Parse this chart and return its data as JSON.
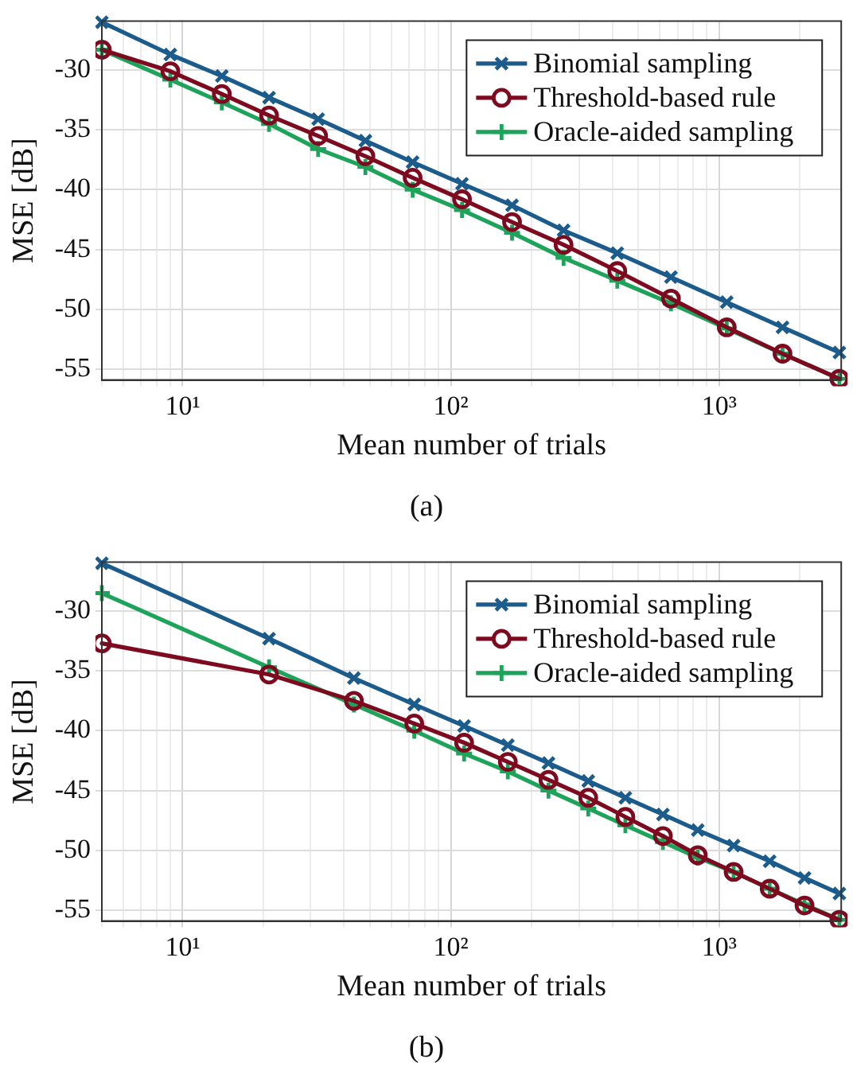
{
  "chart_data": [
    {
      "type": "line",
      "xlabel": "Mean number of trials",
      "ylabel": "MSE [dB]",
      "annotations": [
        "(a)"
      ],
      "log": "x",
      "grid": true,
      "legend": "top right",
      "line_style": "solid",
      "xlim": [
        5,
        2850
      ],
      "ylim": [
        -55.9,
        -25.9
      ],
      "xticks": [
        {
          "value": 5,
          "label": null
        },
        {
          "value": 6,
          "label": null
        },
        {
          "value": 7,
          "label": null
        },
        {
          "value": 8,
          "label": null
        },
        {
          "value": 9,
          "label": null
        },
        {
          "value": 10,
          "label": "10¹"
        },
        {
          "value": 20,
          "label": null
        },
        {
          "value": 30,
          "label": null
        },
        {
          "value": 40,
          "label": null
        },
        {
          "value": 50,
          "label": null
        },
        {
          "value": 60,
          "label": null
        },
        {
          "value": 70,
          "label": null
        },
        {
          "value": 80,
          "label": null
        },
        {
          "value": 90,
          "label": null
        },
        {
          "value": 100,
          "label": "10²"
        },
        {
          "value": 200,
          "label": null
        },
        {
          "value": 300,
          "label": null
        },
        {
          "value": 400,
          "label": null
        },
        {
          "value": 500,
          "label": null
        },
        {
          "value": 600,
          "label": null
        },
        {
          "value": 700,
          "label": null
        },
        {
          "value": 800,
          "label": null
        },
        {
          "value": 900,
          "label": null
        },
        {
          "value": 1000,
          "label": "10³"
        },
        {
          "value": 2000,
          "label": null
        }
      ],
      "yticks": [
        -55,
        -50,
        -45,
        -40,
        -35,
        -30
      ],
      "x": [
        5,
        9,
        14,
        21,
        32,
        48,
        72,
        110,
        169,
        263,
        417,
        661,
        1067,
        1722,
        2805
      ],
      "series": [
        {
          "name": "Binomial sampling",
          "color": "#1b5c8c",
          "marker": "cross",
          "values": [
            -26,
            -28.7,
            -30.5,
            -32.3,
            -34.1,
            -35.9,
            -37.7,
            -39.5,
            -41.3,
            -43.4,
            -45.3,
            -47.3,
            -49.4,
            -51.5,
            -53.6
          ]
        },
        {
          "name": "Threshold-based rule",
          "color": "#7d0a1e",
          "marker": "circle",
          "values": [
            -28.3,
            -30.1,
            -32,
            -33.8,
            -35.5,
            -37.2,
            -39,
            -40.8,
            -42.7,
            -44.6,
            -46.8,
            -49.1,
            -51.5,
            -53.7,
            -55.8
          ]
        },
        {
          "name": "Oracle-aided sampling",
          "color": "#1ea35a",
          "marker": "plus",
          "values": [
            -28.3,
            -30.8,
            -32.7,
            -34.5,
            -36.6,
            -38.1,
            -40,
            -41.7,
            -43.6,
            -45.7,
            -47.6,
            -49.5,
            -51.6,
            -53.7,
            -55.8
          ]
        }
      ]
    },
    {
      "type": "line",
      "xlabel": "Mean number of trials",
      "ylabel": "MSE [dB]",
      "annotations": [
        "(b)"
      ],
      "log": "x",
      "grid": true,
      "legend": "top right",
      "line_style": "solid",
      "xlim": [
        5,
        2850
      ],
      "ylim": [
        -55.9,
        -25.9
      ],
      "xticks": [
        {
          "value": 5,
          "label": null
        },
        {
          "value": 6,
          "label": null
        },
        {
          "value": 7,
          "label": null
        },
        {
          "value": 8,
          "label": null
        },
        {
          "value": 9,
          "label": null
        },
        {
          "value": 10,
          "label": "10¹"
        },
        {
          "value": 20,
          "label": null
        },
        {
          "value": 30,
          "label": null
        },
        {
          "value": 40,
          "label": null
        },
        {
          "value": 50,
          "label": null
        },
        {
          "value": 60,
          "label": null
        },
        {
          "value": 70,
          "label": null
        },
        {
          "value": 80,
          "label": null
        },
        {
          "value": 90,
          "label": null
        },
        {
          "value": 100,
          "label": "10²"
        },
        {
          "value": 200,
          "label": null
        },
        {
          "value": 300,
          "label": null
        },
        {
          "value": 400,
          "label": null
        },
        {
          "value": 500,
          "label": null
        },
        {
          "value": 600,
          "label": null
        },
        {
          "value": 700,
          "label": null
        },
        {
          "value": 800,
          "label": null
        },
        {
          "value": 900,
          "label": null
        },
        {
          "value": 1000,
          "label": "10³"
        },
        {
          "value": 2000,
          "label": null
        }
      ],
      "yticks": [
        -55,
        -50,
        -45,
        -40,
        -35,
        -30
      ],
      "x": [
        5,
        21,
        43.5,
        73,
        112,
        163,
        231,
        325,
        447,
        617,
        832,
        1132,
        1542,
        2080,
        2805
      ],
      "series": [
        {
          "name": "Binomial sampling",
          "color": "#1b5c8c",
          "marker": "cross",
          "values": [
            -26,
            -32.3,
            -35.6,
            -37.8,
            -39.6,
            -41.2,
            -42.7,
            -44.2,
            -45.6,
            -47,
            -48.3,
            -49.6,
            -50.9,
            -52.3,
            -53.6
          ]
        },
        {
          "name": "Threshold-based rule",
          "color": "#7d0a1e",
          "marker": "circle",
          "values": [
            -32.7,
            -35.3,
            -37.5,
            -39.4,
            -41,
            -42.6,
            -44.1,
            -45.6,
            -47.2,
            -48.8,
            -50.4,
            -51.8,
            -53.2,
            -54.6,
            -55.8
          ]
        },
        {
          "name": "Oracle-aided sampling",
          "color": "#1ea35a",
          "marker": "plus",
          "values": [
            -28.5,
            -34.7,
            -37.8,
            -40,
            -41.9,
            -43.4,
            -45,
            -46.5,
            -47.9,
            -49.3,
            -50.6,
            -51.8,
            -53.2,
            -54.5,
            -55.8
          ]
        }
      ]
    }
  ]
}
